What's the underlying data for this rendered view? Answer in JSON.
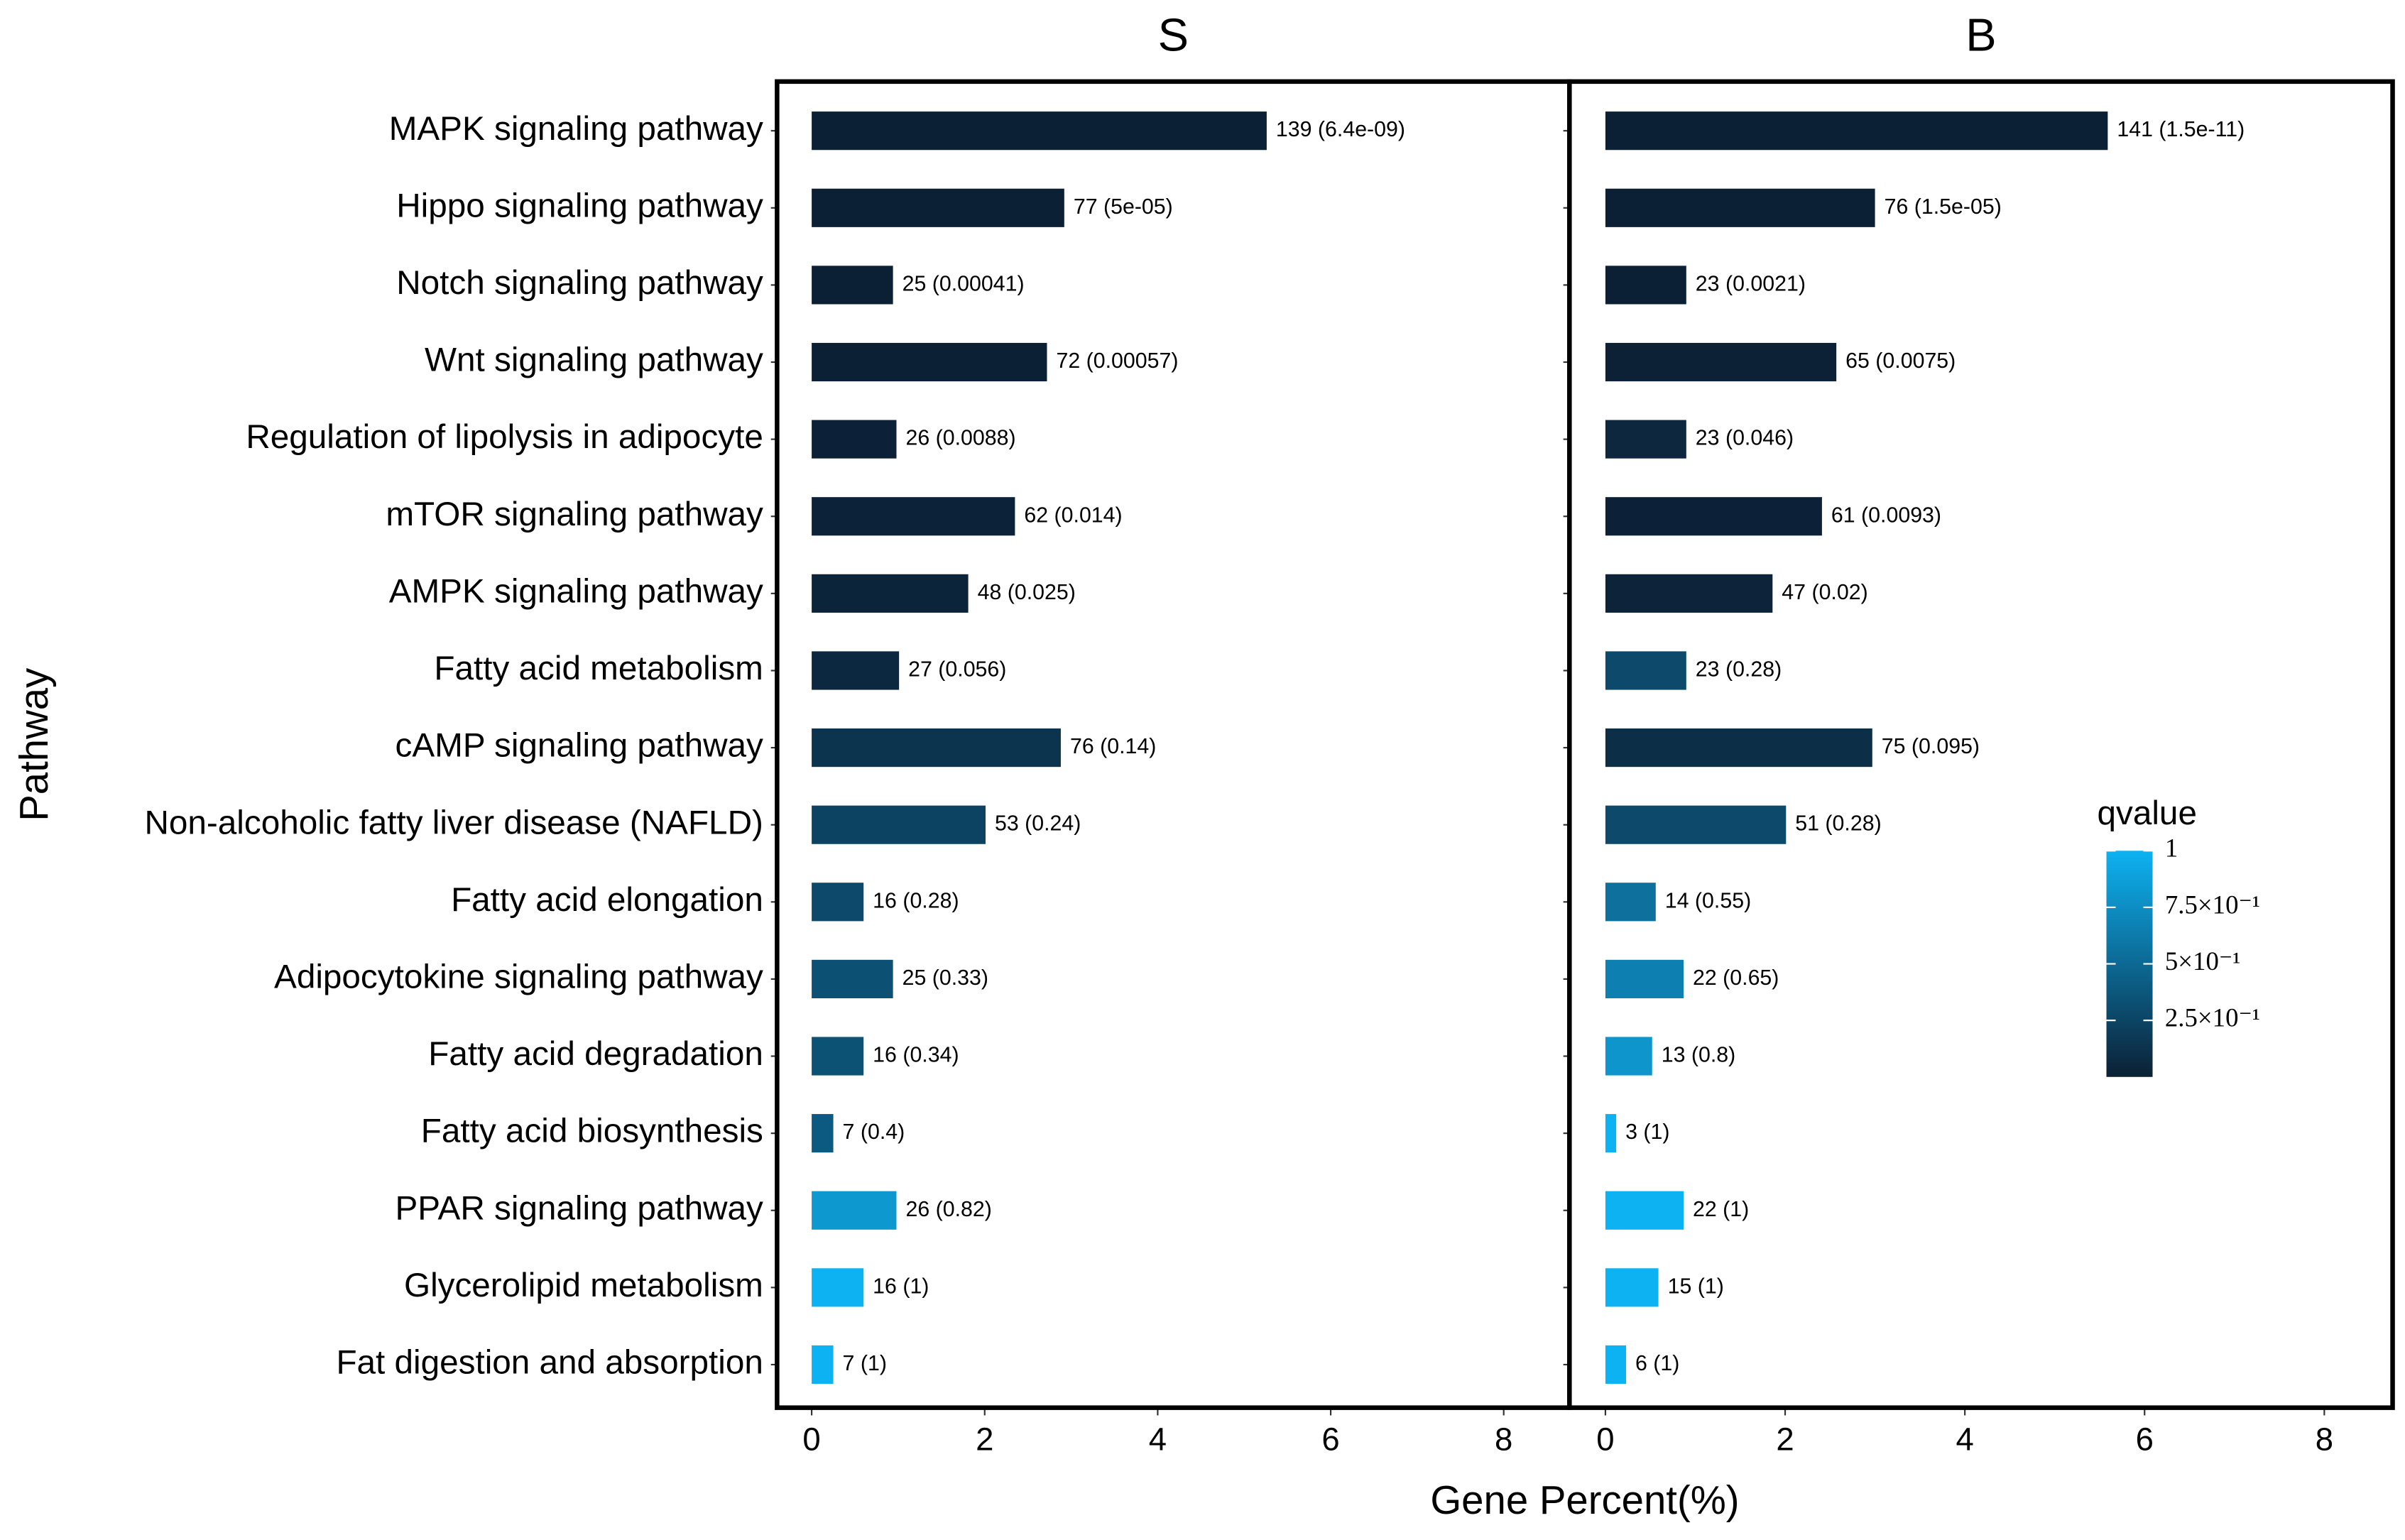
{
  "chart_data": {
    "type": "bar",
    "orientation": "horizontal",
    "xlabel": "Gene Percent(%)",
    "ylabel": "Pathway",
    "categories": [
      "MAPK signaling pathway",
      "Hippo signaling pathway",
      "Notch signaling pathway",
      "Wnt signaling pathway",
      "Regulation of lipolysis in adipocyte",
      "mTOR signaling pathway",
      "AMPK signaling pathway",
      "Fatty acid metabolism",
      "cAMP signaling pathway",
      "Non-alcoholic fatty liver disease (NAFLD)",
      "Fatty acid elongation",
      "Adipocytokine signaling pathway",
      "Fatty acid degradation",
      "Fatty acid biosynthesis",
      "PPAR signaling pathway",
      "Glycerolipid metabolism",
      "Fat digestion and absorption"
    ],
    "xlim": [
      -0.4,
      8.76
    ],
    "xticks": [
      0,
      2,
      4,
      6,
      8
    ],
    "panels": [
      {
        "title": "S",
        "values": [
          5.26,
          2.92,
          0.94,
          2.72,
          0.98,
          2.35,
          1.81,
          1.01,
          2.88,
          2.01,
          0.6,
          0.94,
          0.6,
          0.25,
          0.98,
          0.6,
          0.25
        ],
        "qvalues": [
          6.4e-09,
          5e-05,
          0.00041,
          0.00057,
          0.0088,
          0.014,
          0.025,
          0.056,
          0.14,
          0.24,
          0.28,
          0.33,
          0.34,
          0.4,
          0.82,
          1,
          1
        ],
        "value_labels": [
          "139 (6.4e-09)",
          "77 (5e-05)",
          "25 (0.00041)",
          "72 (0.00057)",
          "26 (0.0088)",
          "62 (0.014)",
          "48 (0.025)",
          "27 (0.056)",
          "76 (0.14)",
          "53 (0.24)",
          "16 (0.28)",
          "25 (0.33)",
          "16 (0.34)",
          "7 (0.4)",
          "26 (0.82)",
          "16 (1)",
          "7 (1)"
        ]
      },
      {
        "title": "B",
        "values": [
          5.59,
          3.0,
          0.9,
          2.57,
          0.9,
          2.41,
          1.86,
          0.9,
          2.97,
          2.01,
          0.56,
          0.87,
          0.52,
          0.12,
          0.87,
          0.59,
          0.23
        ],
        "qvalues": [
          1.5e-11,
          1.5e-05,
          0.0021,
          0.0075,
          0.046,
          0.0093,
          0.02,
          0.28,
          0.095,
          0.28,
          0.55,
          0.65,
          0.8,
          1,
          1,
          1,
          1
        ],
        "value_labels": [
          "141 (1.5e-11)",
          "76 (1.5e-05)",
          "23 (0.0021)",
          "65 (0.0075)",
          "23 (0.046)",
          "61 (0.0093)",
          "47 (0.02)",
          "23 (0.28)",
          "75 (0.095)",
          "51 (0.28)",
          "14 (0.55)",
          "22 (0.65)",
          "13 (0.8)",
          "3 (1)",
          "22 (1)",
          "15 (1)",
          "6 (1)"
        ]
      }
    ],
    "colorbar": {
      "title": "qvalue",
      "low_color": "#0c2035",
      "high_color": "#0db2f2",
      "clim": [
        0,
        1
      ],
      "ticks": [
        1,
        {
          "value": 0.75,
          "label": "7.5×10⁻¹"
        },
        {
          "value": 0.5,
          "label": "5×10⁻¹"
        },
        {
          "value": 0.25,
          "label": "2.5×10⁻¹"
        }
      ]
    }
  }
}
